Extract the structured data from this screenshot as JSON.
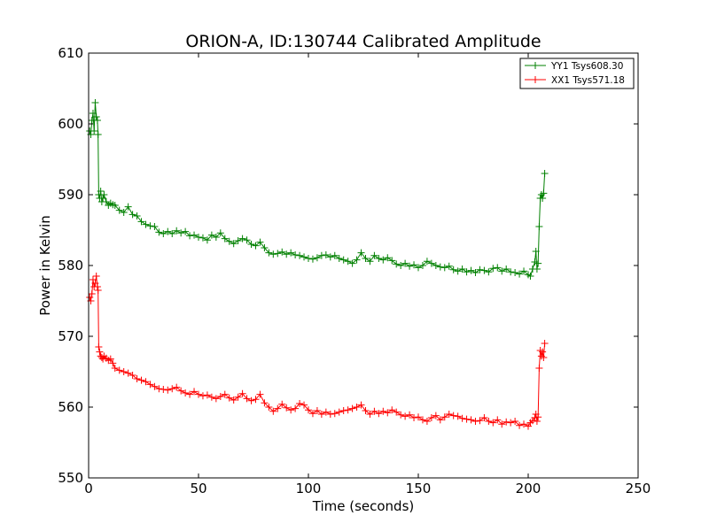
{
  "chart_data": {
    "type": "line",
    "title": "ORION-A, ID:130744 Calibrated Amplitude",
    "xlabel": "Time (seconds)",
    "ylabel": "Power in Kelvin",
    "xlim": [
      0,
      250
    ],
    "ylim": [
      550,
      610
    ],
    "xticks": [
      "0",
      "50",
      "100",
      "150",
      "200",
      "250"
    ],
    "yticks": [
      "550",
      "560",
      "570",
      "580",
      "590",
      "600",
      "610"
    ],
    "grid": false,
    "legend_position": "top-right",
    "marker": "+",
    "series": [
      {
        "name": "YY1 Tsys608.30",
        "color": "#008000",
        "points": [
          [
            0.5,
            599.0
          ],
          [
            1.0,
            598.5
          ],
          [
            1.5,
            600.5
          ],
          [
            2.0,
            601.5
          ],
          [
            2.5,
            599.0
          ],
          [
            3.0,
            603.0
          ],
          [
            3.5,
            601.0
          ],
          [
            4.0,
            600.5
          ],
          [
            4.3,
            598.5
          ],
          [
            4.6,
            590.0
          ],
          [
            5.0,
            589.5
          ],
          [
            5.5,
            590.5
          ],
          [
            6.0,
            589.0
          ],
          [
            6.5,
            589.5
          ],
          [
            7.0,
            590.0
          ],
          [
            8.0,
            589.0
          ],
          [
            9.0,
            588.5
          ],
          [
            10.0,
            588.8
          ],
          [
            11.0,
            588.6
          ],
          [
            12.0,
            588.5
          ],
          [
            14,
            587.8
          ],
          [
            16,
            587.5
          ],
          [
            18,
            588.3
          ],
          [
            20,
            587.2
          ],
          [
            22,
            587.0
          ],
          [
            24,
            586.2
          ],
          [
            26,
            585.8
          ],
          [
            28,
            585.6
          ],
          [
            30,
            585.5
          ],
          [
            32,
            584.7
          ],
          [
            34,
            584.5
          ],
          [
            36,
            584.8
          ],
          [
            38,
            584.5
          ],
          [
            40,
            584.9
          ],
          [
            42,
            584.6
          ],
          [
            44,
            584.8
          ],
          [
            46,
            584.2
          ],
          [
            48,
            584.3
          ],
          [
            50,
            584.0
          ],
          [
            52,
            583.9
          ],
          [
            54,
            583.6
          ],
          [
            56,
            584.3
          ],
          [
            58,
            584.0
          ],
          [
            60,
            584.6
          ],
          [
            62,
            583.8
          ],
          [
            64,
            583.4
          ],
          [
            66,
            583.1
          ],
          [
            68,
            583.5
          ],
          [
            70,
            583.8
          ],
          [
            72,
            583.6
          ],
          [
            74,
            583.0
          ],
          [
            76,
            582.8
          ],
          [
            78,
            583.3
          ],
          [
            80,
            582.5
          ],
          [
            82,
            581.8
          ],
          [
            84,
            581.6
          ],
          [
            86,
            581.7
          ],
          [
            88,
            581.9
          ],
          [
            90,
            581.6
          ],
          [
            92,
            581.8
          ],
          [
            94,
            581.5
          ],
          [
            96,
            581.4
          ],
          [
            98,
            581.2
          ],
          [
            100,
            581.0
          ],
          [
            102,
            580.9
          ],
          [
            104,
            581.1
          ],
          [
            106,
            581.4
          ],
          [
            108,
            581.5
          ],
          [
            110,
            581.2
          ],
          [
            112,
            581.4
          ],
          [
            114,
            581.0
          ],
          [
            116,
            580.8
          ],
          [
            118,
            580.6
          ],
          [
            120,
            580.3
          ],
          [
            122,
            580.8
          ],
          [
            124,
            581.8
          ],
          [
            126,
            581.0
          ],
          [
            128,
            580.6
          ],
          [
            130,
            581.4
          ],
          [
            132,
            581.0
          ],
          [
            134,
            580.8
          ],
          [
            136,
            581.1
          ],
          [
            138,
            580.7
          ],
          [
            140,
            580.2
          ],
          [
            142,
            580.0
          ],
          [
            144,
            580.3
          ],
          [
            146,
            579.9
          ],
          [
            148,
            580.1
          ],
          [
            150,
            579.7
          ],
          [
            152,
            580.0
          ],
          [
            154,
            580.6
          ],
          [
            156,
            580.3
          ],
          [
            158,
            580.0
          ],
          [
            160,
            579.8
          ],
          [
            162,
            579.7
          ],
          [
            164,
            579.9
          ],
          [
            166,
            579.4
          ],
          [
            168,
            579.2
          ],
          [
            170,
            579.5
          ],
          [
            172,
            579.1
          ],
          [
            174,
            579.3
          ],
          [
            176,
            579.0
          ],
          [
            178,
            579.4
          ],
          [
            180,
            579.3
          ],
          [
            182,
            579.1
          ],
          [
            184,
            579.6
          ],
          [
            186,
            579.7
          ],
          [
            188,
            579.2
          ],
          [
            190,
            579.5
          ],
          [
            192,
            579.1
          ],
          [
            194,
            579.0
          ],
          [
            196,
            578.8
          ],
          [
            198,
            579.2
          ],
          [
            200,
            578.7
          ],
          [
            201,
            578.5
          ],
          [
            202,
            579.5
          ],
          [
            203,
            580.5
          ],
          [
            203.5,
            582.0
          ],
          [
            204,
            579.5
          ],
          [
            204.5,
            580.3
          ],
          [
            205,
            585.5
          ],
          [
            205.5,
            589.5
          ],
          [
            206,
            590.0
          ],
          [
            206.5,
            589.5
          ],
          [
            207,
            590.2
          ],
          [
            207.5,
            593.0
          ]
        ]
      },
      {
        "name": "XX1 Tsys571.18",
        "color": "#ff0000",
        "points": [
          [
            0.5,
            575.5
          ],
          [
            1.0,
            575.0
          ],
          [
            1.5,
            576.0
          ],
          [
            2.0,
            578.0
          ],
          [
            2.5,
            577.0
          ],
          [
            3.0,
            577.5
          ],
          [
            3.5,
            578.5
          ],
          [
            4.0,
            577.0
          ],
          [
            4.3,
            576.5
          ],
          [
            4.6,
            568.5
          ],
          [
            5.0,
            567.8
          ],
          [
            5.5,
            567.2
          ],
          [
            6.0,
            567.0
          ],
          [
            6.5,
            566.8
          ],
          [
            7.0,
            567.2
          ],
          [
            8.0,
            566.9
          ],
          [
            9.0,
            566.6
          ],
          [
            10.0,
            566.8
          ],
          [
            11.0,
            566.2
          ],
          [
            12.0,
            565.5
          ],
          [
            14,
            565.2
          ],
          [
            16,
            565.0
          ],
          [
            18,
            564.8
          ],
          [
            20,
            564.5
          ],
          [
            22,
            564.0
          ],
          [
            24,
            563.8
          ],
          [
            26,
            563.6
          ],
          [
            28,
            563.2
          ],
          [
            30,
            562.9
          ],
          [
            32,
            562.6
          ],
          [
            34,
            562.5
          ],
          [
            36,
            562.4
          ],
          [
            38,
            562.6
          ],
          [
            40,
            562.8
          ],
          [
            42,
            562.3
          ],
          [
            44,
            562.0
          ],
          [
            46,
            561.8
          ],
          [
            48,
            562.2
          ],
          [
            50,
            561.8
          ],
          [
            52,
            561.6
          ],
          [
            54,
            561.7
          ],
          [
            56,
            561.4
          ],
          [
            58,
            561.2
          ],
          [
            60,
            561.5
          ],
          [
            62,
            561.8
          ],
          [
            64,
            561.3
          ],
          [
            66,
            561.0
          ],
          [
            68,
            561.4
          ],
          [
            70,
            561.9
          ],
          [
            72,
            561.2
          ],
          [
            74,
            560.9
          ],
          [
            76,
            561.1
          ],
          [
            78,
            561.8
          ],
          [
            80,
            560.6
          ],
          [
            82,
            560.0
          ],
          [
            84,
            559.4
          ],
          [
            86,
            559.8
          ],
          [
            88,
            560.4
          ],
          [
            90,
            559.9
          ],
          [
            92,
            559.6
          ],
          [
            94,
            559.8
          ],
          [
            96,
            560.5
          ],
          [
            98,
            560.3
          ],
          [
            100,
            559.6
          ],
          [
            102,
            559.1
          ],
          [
            104,
            559.5
          ],
          [
            106,
            559.0
          ],
          [
            108,
            559.3
          ],
          [
            110,
            559.0
          ],
          [
            112,
            559.1
          ],
          [
            114,
            559.3
          ],
          [
            116,
            559.5
          ],
          [
            118,
            559.6
          ],
          [
            120,
            559.8
          ],
          [
            122,
            560.0
          ],
          [
            124,
            560.3
          ],
          [
            126,
            559.5
          ],
          [
            128,
            559.0
          ],
          [
            130,
            559.4
          ],
          [
            132,
            559.1
          ],
          [
            134,
            559.4
          ],
          [
            136,
            559.2
          ],
          [
            138,
            559.6
          ],
          [
            140,
            559.3
          ],
          [
            142,
            558.9
          ],
          [
            144,
            558.7
          ],
          [
            146,
            558.9
          ],
          [
            148,
            558.5
          ],
          [
            150,
            558.6
          ],
          [
            152,
            558.2
          ],
          [
            154,
            558.0
          ],
          [
            156,
            558.5
          ],
          [
            158,
            558.8
          ],
          [
            160,
            558.2
          ],
          [
            162,
            558.6
          ],
          [
            164,
            559.0
          ],
          [
            166,
            558.8
          ],
          [
            168,
            558.7
          ],
          [
            170,
            558.4
          ],
          [
            172,
            558.3
          ],
          [
            174,
            558.2
          ],
          [
            176,
            558.0
          ],
          [
            178,
            558.1
          ],
          [
            180,
            558.5
          ],
          [
            182,
            558.0
          ],
          [
            184,
            557.8
          ],
          [
            186,
            558.2
          ],
          [
            188,
            557.6
          ],
          [
            190,
            557.9
          ],
          [
            192,
            557.8
          ],
          [
            194,
            558.0
          ],
          [
            196,
            557.4
          ],
          [
            198,
            557.6
          ],
          [
            200,
            557.3
          ],
          [
            201,
            557.8
          ],
          [
            202,
            558.1
          ],
          [
            203,
            558.5
          ],
          [
            203.5,
            559.0
          ],
          [
            204,
            558.0
          ],
          [
            204.5,
            558.6
          ],
          [
            205,
            565.5
          ],
          [
            205.5,
            568.0
          ],
          [
            206,
            567.2
          ],
          [
            206.5,
            567.8
          ],
          [
            207,
            567.0
          ],
          [
            207.5,
            569.0
          ]
        ]
      }
    ]
  }
}
